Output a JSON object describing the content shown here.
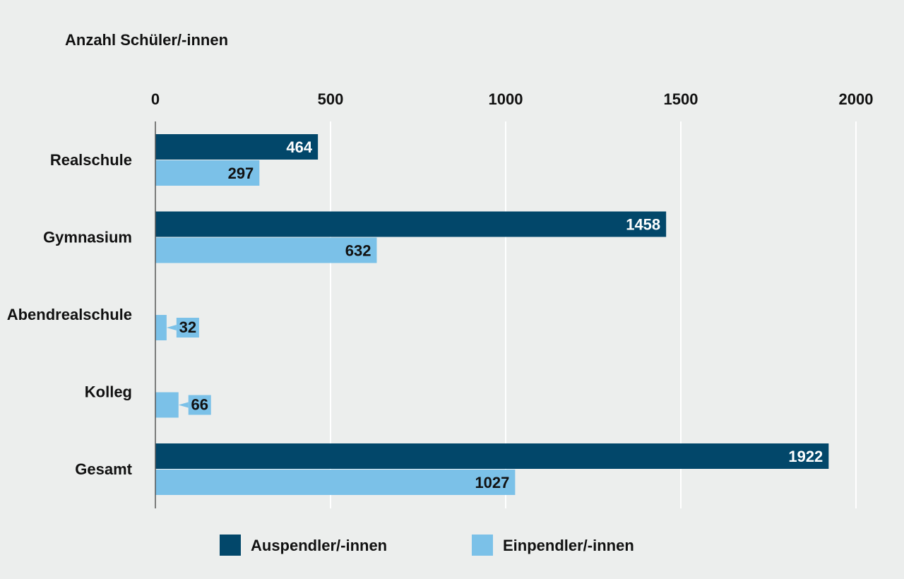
{
  "chart_data": {
    "type": "bar",
    "orientation": "horizontal",
    "title": "Anzahl Schüler/-innen",
    "categories": [
      "Realschule",
      "Gymnasium",
      "Abendrealschule",
      "Kolleg",
      "Gesamt"
    ],
    "series": [
      {
        "name": "Auspendler/-innen",
        "color": "#02476a",
        "values": [
          464,
          1458,
          null,
          null,
          1922
        ]
      },
      {
        "name": "Einpendler/-innen",
        "color": "#7bc1e8",
        "values": [
          297,
          632,
          32,
          66,
          1027
        ]
      }
    ],
    "xlim": [
      0,
      2000
    ],
    "ticks": [
      0,
      500,
      1000,
      1500,
      2000
    ],
    "grid": true,
    "axis_position": "top",
    "legend": "bottom"
  }
}
